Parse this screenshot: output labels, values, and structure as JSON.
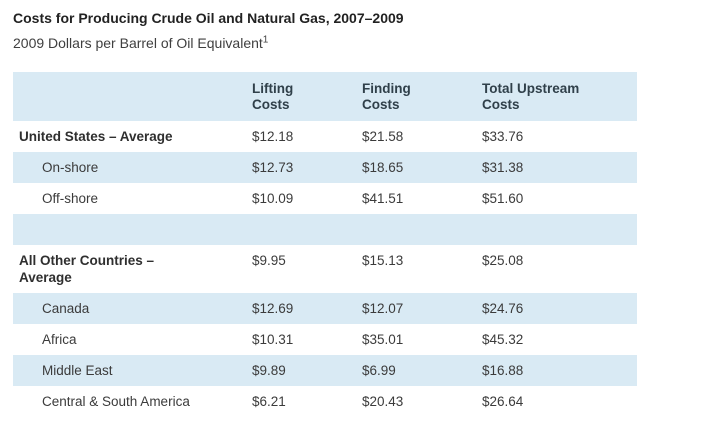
{
  "page": {
    "title": "Costs for Producing Crude Oil and Natural Gas, 2007–2009",
    "subtitle": "2009 Dollars per Barrel of Oil Equivalent",
    "footnote_marker": "1"
  },
  "colors": {
    "row_stripe_blue": "#d9eaf4",
    "header_text": "#30404a",
    "body_text": "#3b3b3b"
  },
  "table": {
    "headers": [
      "",
      "Lifting\nCosts",
      "Finding\nCosts",
      "Total Upstream\nCosts"
    ],
    "rows": [
      {
        "label": "United States – Average",
        "lifting": "$12.18",
        "finding": "$21.58",
        "total": "$33.76"
      },
      {
        "label": "On-shore",
        "lifting": "$12.73",
        "finding": "$18.65",
        "total": "$31.38"
      },
      {
        "label": "Off-shore",
        "lifting": "$10.09",
        "finding": "$41.51",
        "total": "$51.60"
      },
      {
        "label": "",
        "lifting": "",
        "finding": "",
        "total": ""
      },
      {
        "label": "All Other Countries – Average",
        "lifting": "$9.95",
        "finding": "$15.13",
        "total": "$25.08"
      },
      {
        "label": "Canada",
        "lifting": "$12.69",
        "finding": "$12.07",
        "total": "$24.76"
      },
      {
        "label": "Africa",
        "lifting": "$10.31",
        "finding": "$35.01",
        "total": "$45.32"
      },
      {
        "label": "Middle East",
        "lifting": "$9.89",
        "finding": "$6.99",
        "total": "$16.88"
      },
      {
        "label": "Central & South America",
        "lifting": "$6.21",
        "finding": "$20.43",
        "total": "$26.64"
      }
    ]
  },
  "chart_data": {
    "type": "table",
    "title": "Costs for Producing Crude Oil and Natural Gas, 2007–2009",
    "subtitle": "2009 Dollars per Barrel of Oil Equivalent (footnote 1)",
    "columns": [
      "Lifting Costs",
      "Finding Costs",
      "Total Upstream Costs"
    ],
    "rows": [
      {
        "label": "United States – Average",
        "values": [
          12.18,
          21.58,
          33.76
        ],
        "emphasis": true
      },
      {
        "label": "On-shore",
        "values": [
          12.73,
          18.65,
          31.38
        ],
        "emphasis": false
      },
      {
        "label": "Off-shore",
        "values": [
          10.09,
          41.51,
          51.6
        ],
        "emphasis": false
      },
      {
        "label": "All Other Countries – Average",
        "values": [
          9.95,
          15.13,
          25.08
        ],
        "emphasis": true
      },
      {
        "label": "Canada",
        "values": [
          12.69,
          12.07,
          24.76
        ],
        "emphasis": false
      },
      {
        "label": "Africa",
        "values": [
          10.31,
          35.01,
          45.32
        ],
        "emphasis": false
      },
      {
        "label": "Middle East",
        "values": [
          9.89,
          6.99,
          16.88
        ],
        "emphasis": false
      },
      {
        "label": "Central & South America",
        "values": [
          6.21,
          20.43,
          26.64
        ],
        "emphasis": false
      }
    ],
    "units": "2009 US dollars per barrel of oil equivalent",
    "layout": {
      "striped_rows": true,
      "stripe_color": "#d9eaf4"
    }
  }
}
